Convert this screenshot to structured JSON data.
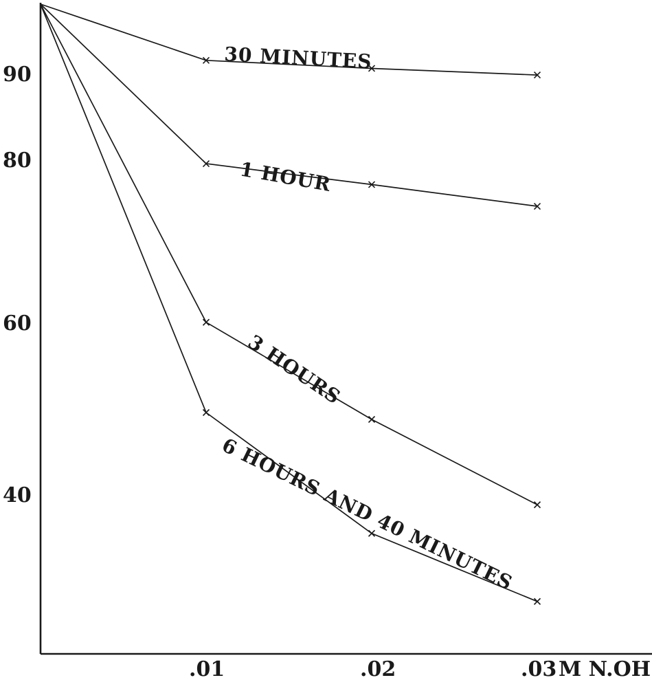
{
  "chart_data": {
    "type": "line",
    "title": "",
    "xlabel": "",
    "ylabel": "",
    "x_units_label": "M N.OH",
    "x": [
      0,
      0.01,
      0.02,
      0.03
    ],
    "x_tick_labels": [
      ".01",
      ".02",
      ".03"
    ],
    "y_tick_labels": [
      "90",
      "80",
      "60",
      "40"
    ],
    "grid": false,
    "series": [
      {
        "name": "30 MINUTES",
        "values": [
          100,
          90.7,
          89.6,
          88.9
        ]
      },
      {
        "name": "1 HOUR",
        "values": [
          100,
          79.4,
          76.8,
          74.1
        ]
      },
      {
        "name": "3 HOURS",
        "values": [
          100,
          59.7,
          48.4,
          38.3
        ]
      },
      {
        "name": "6 HOURS AND 40 MINUTES",
        "values": [
          100,
          49.2,
          34.6,
          25.8
        ]
      }
    ]
  }
}
